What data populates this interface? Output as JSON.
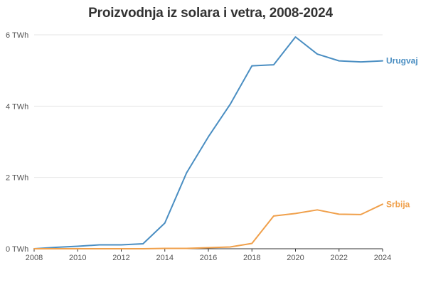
{
  "chart_data": {
    "type": "line",
    "title": "Proizvodnja iz solara i vetra, 2008-2024",
    "xlabel": "",
    "ylabel": "",
    "x": [
      2008,
      2009,
      2010,
      2011,
      2012,
      2013,
      2014,
      2015,
      2016,
      2017,
      2018,
      2019,
      2020,
      2021,
      2022,
      2023,
      2024
    ],
    "xlim": [
      2008,
      2024
    ],
    "ylim": [
      0,
      6
    ],
    "y_ticks": [
      0,
      2,
      4,
      6
    ],
    "y_tick_labels": [
      "0 TWh",
      "2 TWh",
      "4 TWh",
      "6 TWh"
    ],
    "x_ticks": [
      2008,
      2010,
      2012,
      2014,
      2016,
      2018,
      2020,
      2022,
      2024
    ],
    "x_tick_labels": [
      "2008",
      "2010",
      "2012",
      "2014",
      "2016",
      "2018",
      "2020",
      "2022",
      "2024"
    ],
    "grid": "horizontal",
    "series": [
      {
        "name": "Urugvaj",
        "color": "#4a8ec2",
        "values": [
          0.0,
          0.04,
          0.07,
          0.11,
          0.11,
          0.14,
          0.72,
          2.13,
          3.14,
          4.05,
          5.13,
          5.16,
          5.94,
          5.46,
          5.27,
          5.24,
          5.27
        ]
      },
      {
        "name": "Srbija",
        "color": "#f0a04b",
        "values": [
          0.0,
          0.0,
          0.0,
          0.0,
          0.0,
          0.0,
          0.01,
          0.01,
          0.03,
          0.05,
          0.15,
          0.92,
          0.99,
          1.09,
          0.97,
          0.96,
          1.25
        ]
      }
    ]
  }
}
